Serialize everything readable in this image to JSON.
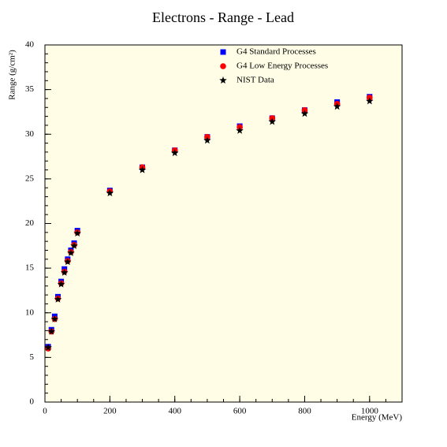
{
  "chart_data": {
    "type": "scatter",
    "title": "Electrons - Range - Lead",
    "xlabel": "Energy (MeV)",
    "ylabel": "Range (g/cm²)",
    "x": [
      10,
      20,
      30,
      40,
      50,
      60,
      70,
      80,
      90,
      100,
      200,
      300,
      400,
      500,
      600,
      700,
      800,
      900,
      1000
    ],
    "series": [
      {
        "name": "G4 Standard Processes",
        "color": "#0000ff",
        "marker": "square",
        "values": [
          6.2,
          8.1,
          9.6,
          11.8,
          13.5,
          14.9,
          16.0,
          17.0,
          17.8,
          19.2,
          23.7,
          26.3,
          28.2,
          29.7,
          30.9,
          31.8,
          32.7,
          33.6,
          34.2
        ]
      },
      {
        "name": "G4 Low Energy Processes",
        "color": "#ff0000",
        "marker": "circle",
        "values": [
          6.0,
          7.9,
          9.3,
          11.6,
          13.3,
          14.6,
          15.8,
          16.8,
          17.6,
          19.0,
          23.6,
          26.3,
          28.2,
          29.7,
          30.8,
          31.8,
          32.7,
          33.4,
          34.1
        ]
      },
      {
        "name": "NIST Data",
        "color": "#000000",
        "marker": "star",
        "values": [
          6.1,
          7.9,
          9.3,
          11.5,
          13.2,
          14.5,
          15.7,
          16.7,
          17.5,
          18.9,
          23.4,
          26.0,
          27.9,
          29.3,
          30.4,
          31.4,
          32.3,
          33.1,
          33.7
        ]
      }
    ],
    "xlim": [
      0,
      1100
    ],
    "ylim": [
      0,
      40
    ],
    "xticks": [
      0,
      200,
      400,
      600,
      800,
      1000
    ],
    "yticks": [
      0,
      5,
      10,
      15,
      20,
      25,
      30,
      35,
      40
    ],
    "legend": "top-right",
    "background": "#fffde6"
  }
}
